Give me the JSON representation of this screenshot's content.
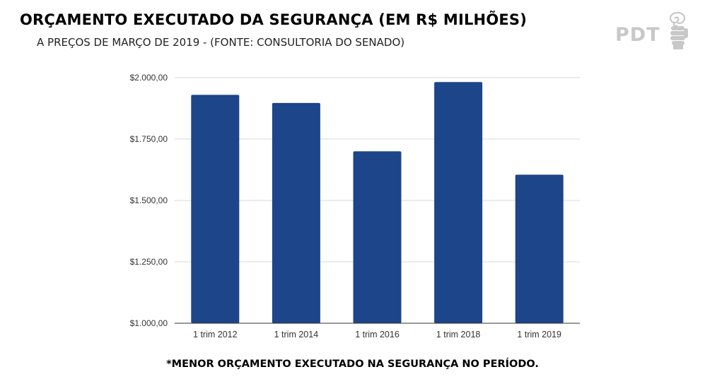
{
  "header": {
    "title": "ORÇAMENTO EXECUTADO DA SEGURANÇA (EM R$ MILHÕES)",
    "subtitle": "A PREÇOS DE MARÇO DE 2019 - (FONTE: CONSULTORIA DO SENADO)"
  },
  "logo": {
    "text": "PDT",
    "icon": "rose-in-fist-icon"
  },
  "footnote": "*MENOR ORÇAMENTO EXECUTADO NA SEGURANÇA NO PERÍODO.",
  "colors": {
    "bar": "#1d4589",
    "grid": "#d9d9d9",
    "axis": "#333333",
    "logo": "#c8c8c8"
  },
  "chart_data": {
    "type": "bar",
    "title": "ORÇAMENTO EXECUTADO DA SEGURANÇA (EM R$ MILHÕES)",
    "subtitle": "A PREÇOS DE MARÇO DE 2019 - (FONTE: CONSULTORIA DO SENADO)",
    "xlabel": "",
    "ylabel": "",
    "categories": [
      "1 trim 2012",
      "1 trim 2014",
      "1 trim 2016",
      "1 trim 2018",
      "1 trim 2019"
    ],
    "values": [
      1930,
      1897,
      1700,
      1982,
      1605
    ],
    "ylim": [
      1000,
      2000
    ],
    "yticks": [
      1000,
      1250,
      1500,
      1750,
      2000
    ],
    "ytick_labels": [
      "$1.000,00",
      "$1.250,00",
      "$1.500,00",
      "$1.750,00",
      "$2.000,00"
    ],
    "grid": true,
    "legend": "none"
  }
}
